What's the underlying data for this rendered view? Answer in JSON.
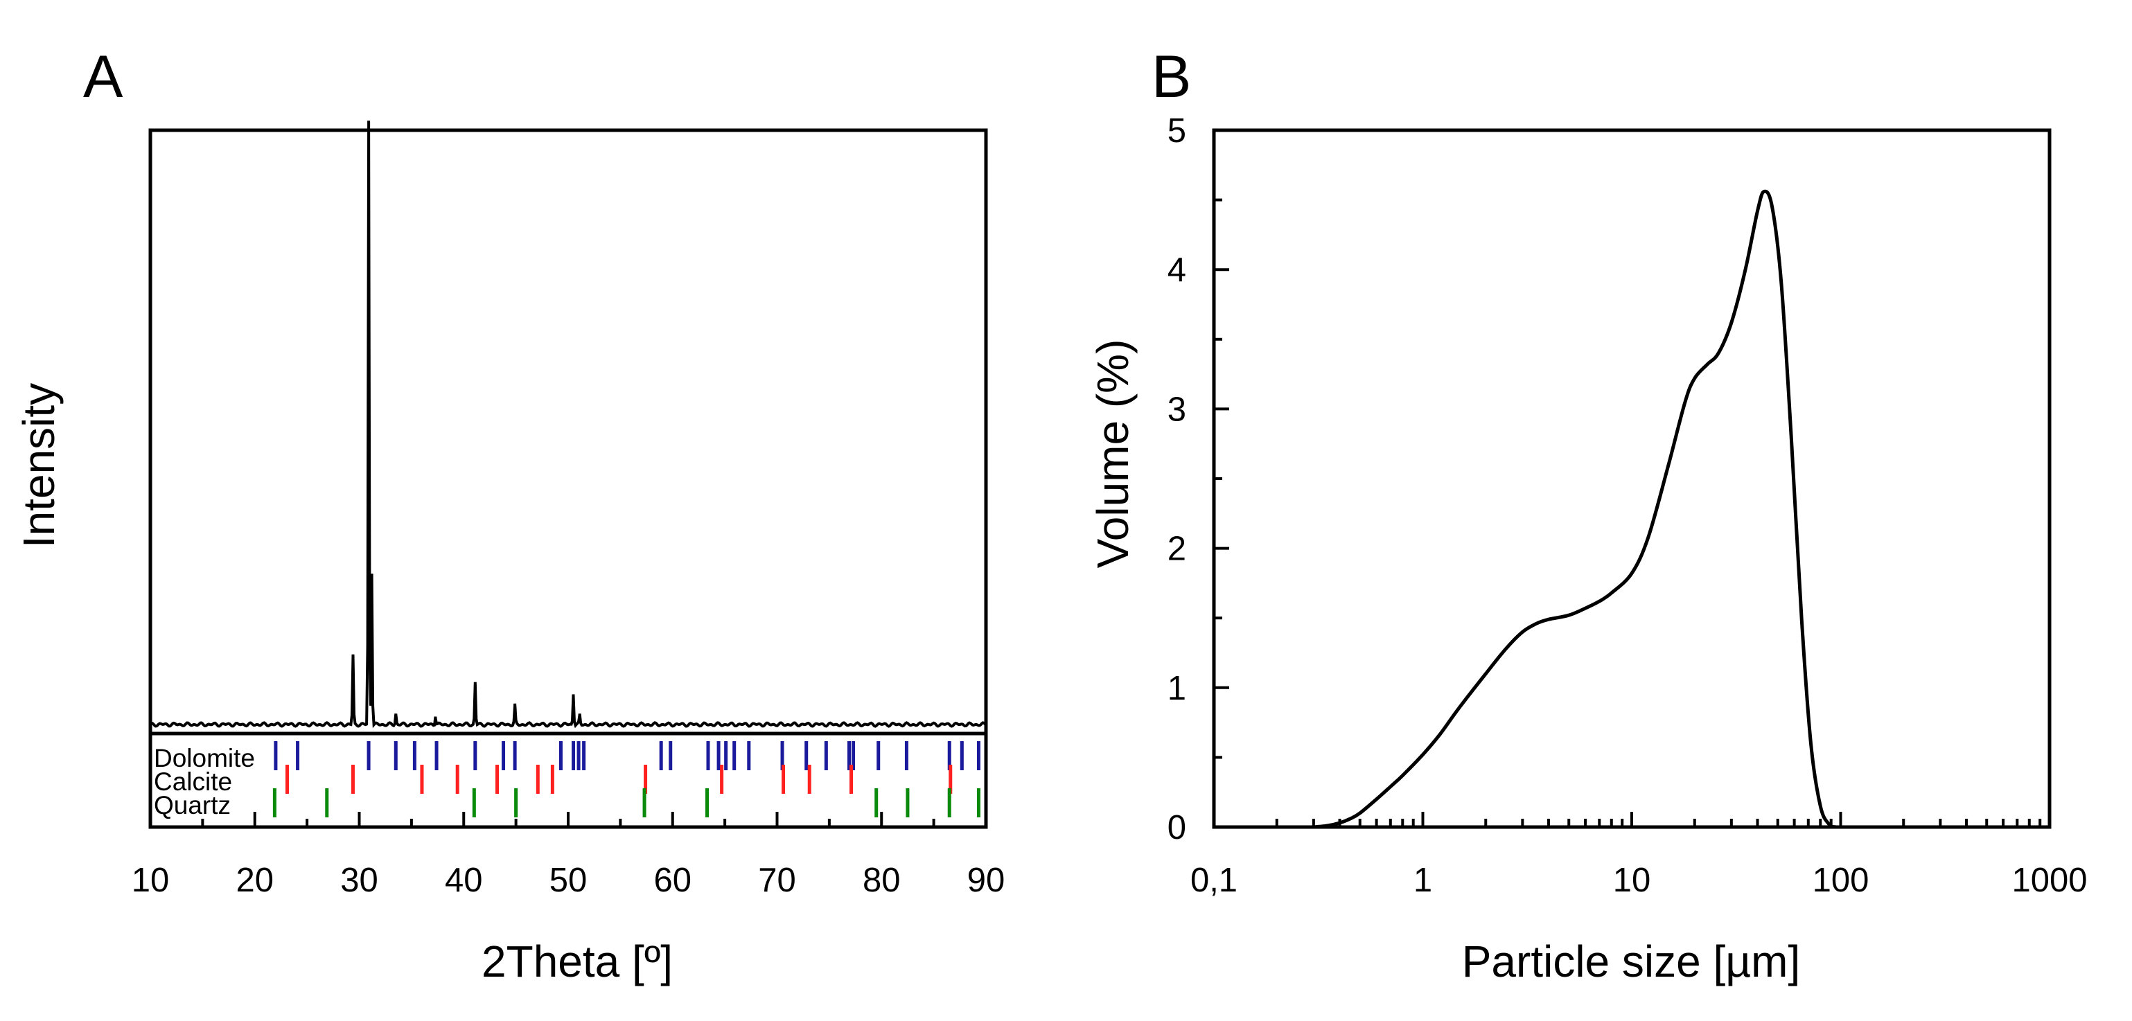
{
  "chart_data": [
    {
      "panel": "A",
      "type": "line",
      "title": "",
      "xlabel": "2Theta [º]",
      "ylabel": "Intensity",
      "xlim": [
        10,
        90
      ],
      "xticks": [
        "10",
        "20",
        "30",
        "40",
        "50",
        "60",
        "70",
        "80",
        "90"
      ],
      "ylim": [
        0,
        100
      ],
      "yticks_shown": false,
      "baseline": 1.5,
      "peaks": [
        {
          "x": 29.4,
          "y": 11.5
        },
        {
          "x": 30.9,
          "y": 100
        },
        {
          "x": 31.2,
          "y": 25.0
        },
        {
          "x": 33.5,
          "y": 1.8
        },
        {
          "x": 37.3,
          "y": 1.3
        },
        {
          "x": 41.1,
          "y": 7.0
        },
        {
          "x": 44.9,
          "y": 3.2
        },
        {
          "x": 50.5,
          "y": 5.0
        },
        {
          "x": 51.1,
          "y": 1.6
        }
      ],
      "reference_phases": [
        {
          "name": "Dolomite",
          "color": "#1a1a9c",
          "positions": [
            22.0,
            24.1,
            30.9,
            33.5,
            35.3,
            37.4,
            41.1,
            43.8,
            44.9,
            49.3,
            50.5,
            51.0,
            51.5,
            58.9,
            59.8,
            63.4,
            64.4,
            65.1,
            65.9,
            67.3,
            70.5,
            72.8,
            74.7,
            76.9,
            77.3,
            79.7,
            82.4,
            86.5,
            87.7,
            89.3
          ]
        },
        {
          "name": "Calcite",
          "color": "#ff2020",
          "positions": [
            23.1,
            29.4,
            36.0,
            39.4,
            43.2,
            47.1,
            48.5,
            57.4,
            64.7,
            70.6,
            73.1,
            77.1,
            86.6
          ]
        },
        {
          "name": "Quartz",
          "color": "#0a8a0a",
          "positions": [
            21.9,
            26.9,
            41.0,
            45.0,
            57.3,
            63.3,
            79.5,
            82.5,
            86.5,
            89.3
          ]
        }
      ]
    },
    {
      "panel": "B",
      "type": "line",
      "title": "",
      "xlabel": "Particle size [µm]",
      "ylabel": "Volume (%)",
      "xscale": "log",
      "xlim": [
        0.1,
        1000
      ],
      "xticks": [
        "0,1",
        "1",
        "10",
        "100",
        "1000"
      ],
      "ylim": [
        0,
        5
      ],
      "yticks": [
        "0",
        "1",
        "2",
        "3",
        "4",
        "5"
      ],
      "series": [
        {
          "name": "Volume",
          "x": [
            0.3,
            0.35,
            0.4,
            0.45,
            0.5,
            0.6,
            0.7,
            0.8,
            1.0,
            1.2,
            1.5,
            2.0,
            2.5,
            3.0,
            3.5,
            4.0,
            5.0,
            6.0,
            7.0,
            8.0,
            10,
            12,
            15,
            18,
            20,
            23,
            26,
            30,
            35,
            40,
            43,
            47,
            52,
            58,
            65,
            72,
            80,
            88,
            95
          ],
          "y": [
            0,
            0.01,
            0.03,
            0.06,
            0.1,
            0.2,
            0.29,
            0.37,
            0.52,
            0.66,
            0.86,
            1.1,
            1.28,
            1.4,
            1.46,
            1.49,
            1.52,
            1.57,
            1.62,
            1.68,
            1.82,
            2.08,
            2.6,
            3.05,
            3.22,
            3.32,
            3.4,
            3.62,
            4.0,
            4.42,
            4.56,
            4.45,
            3.9,
            2.8,
            1.5,
            0.6,
            0.15,
            0.02,
            0
          ]
        }
      ]
    }
  ]
}
